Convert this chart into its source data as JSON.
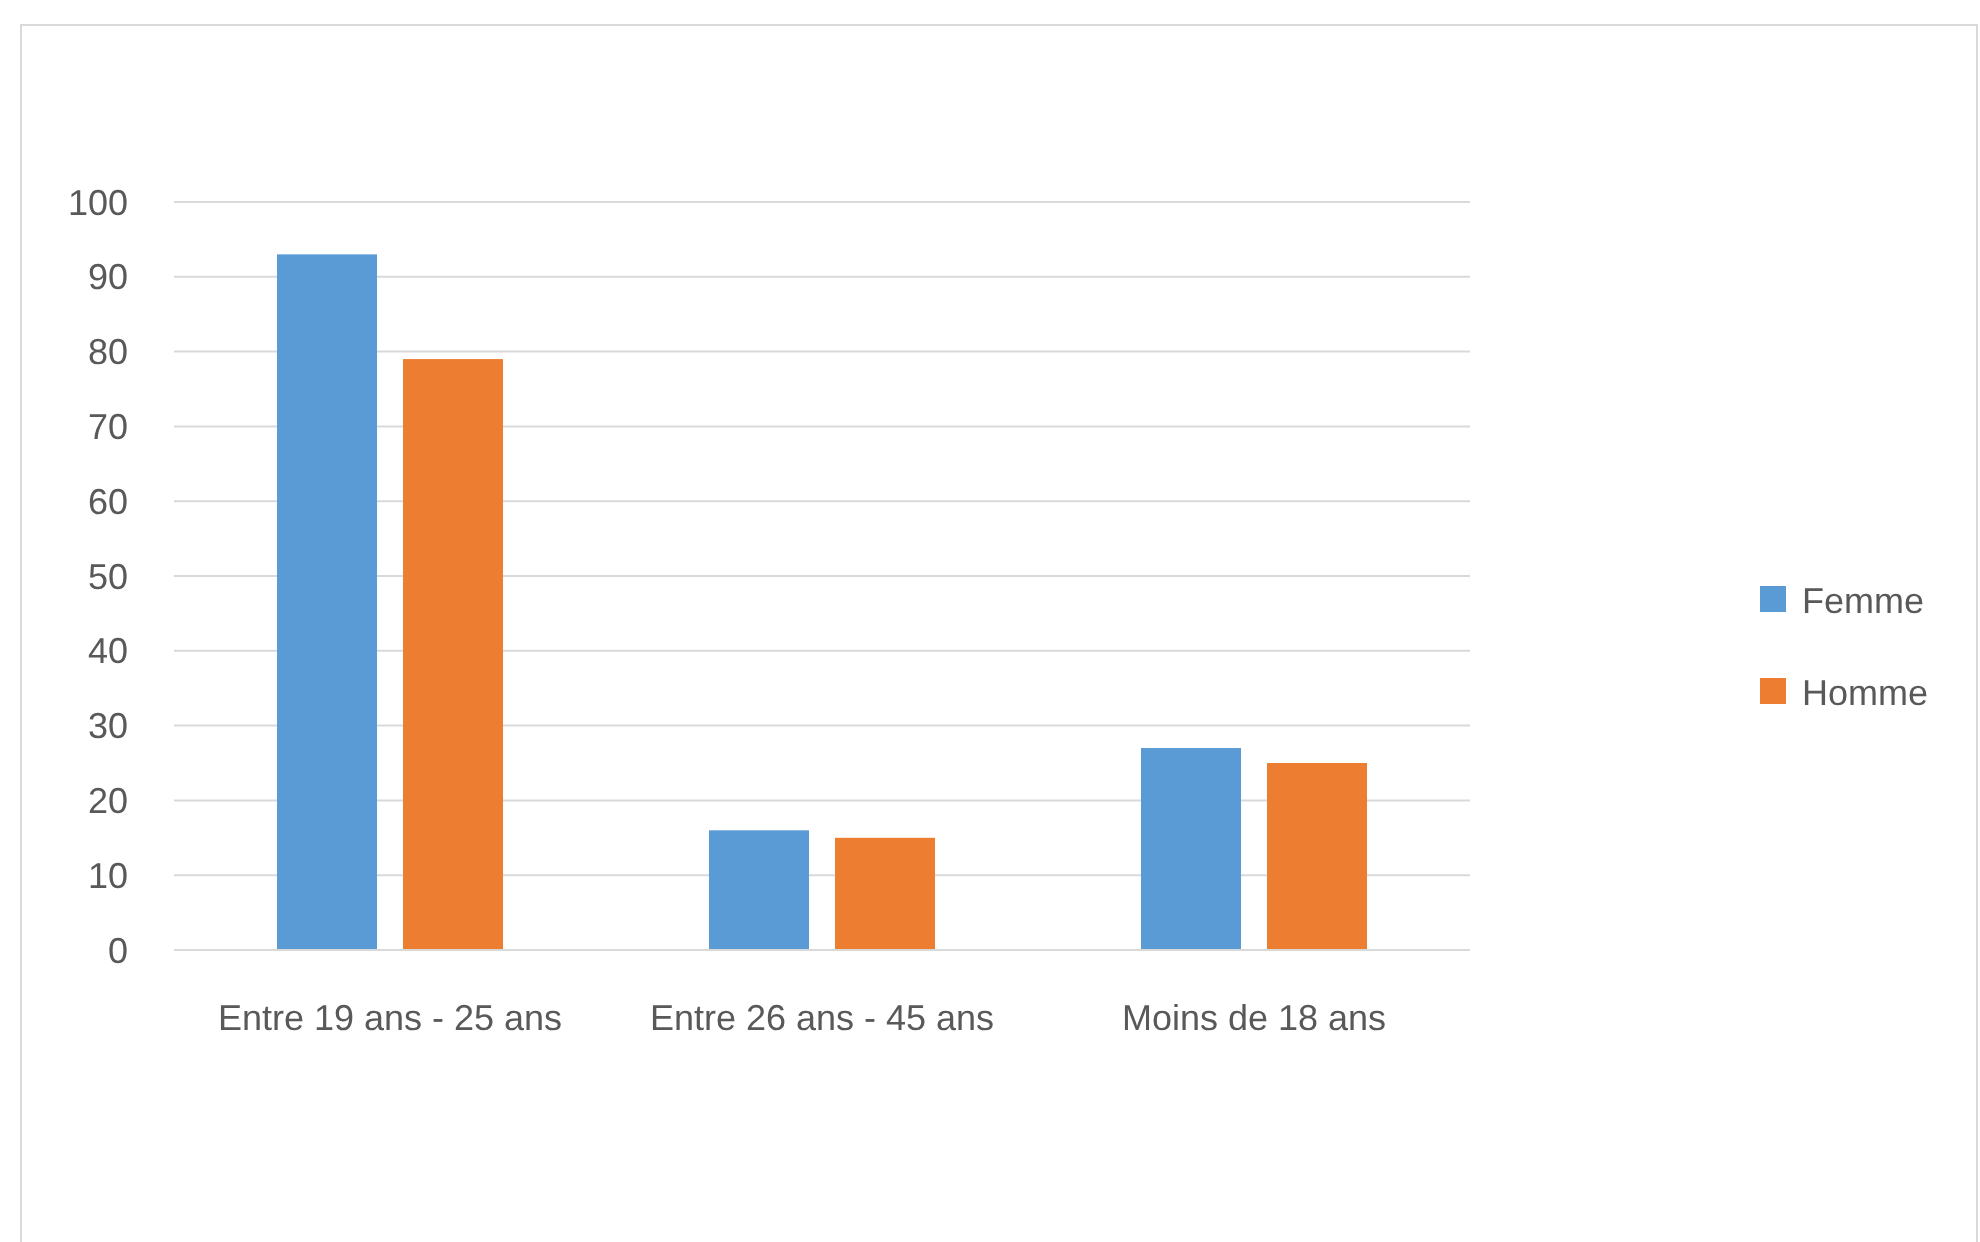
{
  "chart_data": {
    "type": "bar",
    "categories": [
      "Entre 19 ans - 25 ans",
      "Entre 26 ans - 45 ans",
      "Moins de 18 ans"
    ],
    "series": [
      {
        "name": "Femme",
        "color": "#5b9bd5",
        "values": [
          93,
          16,
          27
        ]
      },
      {
        "name": "Homme",
        "color": "#ed7d31",
        "values": [
          79,
          15,
          25
        ]
      }
    ],
    "ylim": [
      0,
      100
    ],
    "yticks": [
      0,
      10,
      20,
      30,
      40,
      50,
      60,
      70,
      80,
      90,
      100
    ],
    "grid": "y",
    "legend": "right"
  }
}
